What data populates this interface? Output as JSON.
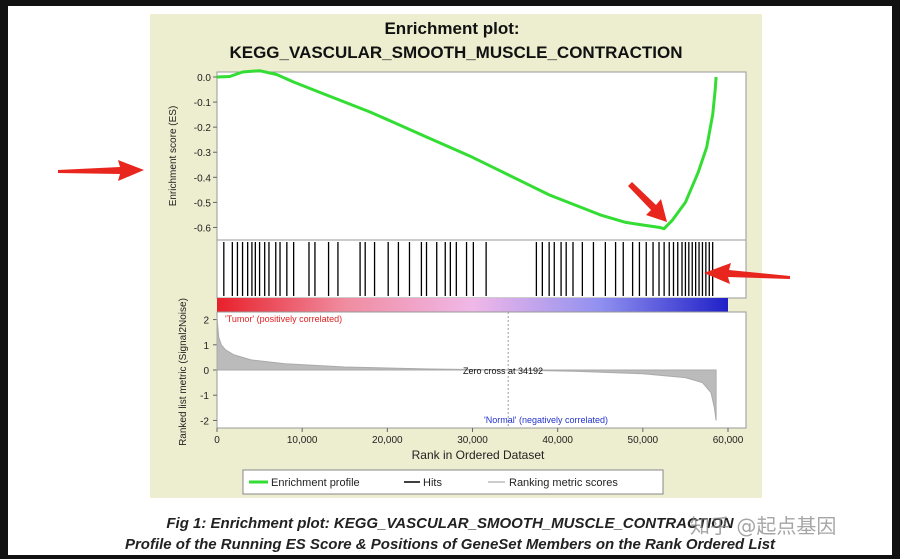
{
  "chart_data": {
    "type": "line",
    "title": "Enrichment plot:",
    "subtitle": "KEGG_VASCULAR_SMOOTH_MUSCLE_CONTRACTION",
    "es_panel": {
      "ylabel": "Enrichment score (ES)",
      "ylim": [
        -0.65,
        0.02
      ],
      "yticks": [
        "0.0",
        "-0.1",
        "-0.2",
        "-0.3",
        "-0.4",
        "-0.5",
        "-0.6"
      ],
      "series": [
        {
          "name": "Enrichment profile",
          "color": "#33dd33",
          "x": [
            0,
            1500,
            3000,
            5000,
            7000,
            9000,
            12000,
            15000,
            18000,
            21000,
            24000,
            27000,
            30000,
            33000,
            36000,
            39000,
            42000,
            45000,
            48000,
            50000,
            52000,
            52500,
            53500,
            55000,
            56500,
            57500,
            58200,
            58500,
            58600
          ],
          "y": [
            0.0,
            0.002,
            0.02,
            0.025,
            0.01,
            -0.02,
            -0.06,
            -0.1,
            -0.14,
            -0.185,
            -0.23,
            -0.275,
            -0.32,
            -0.37,
            -0.42,
            -0.47,
            -0.51,
            -0.55,
            -0.58,
            -0.59,
            -0.6,
            -0.605,
            -0.57,
            -0.5,
            -0.38,
            -0.28,
            -0.15,
            -0.05,
            0.0
          ]
        }
      ]
    },
    "hits_panel": {
      "hit_positions": [
        800,
        1800,
        2400,
        3000,
        3600,
        4100,
        4500,
        5000,
        5600,
        6100,
        6900,
        7400,
        8200,
        9000,
        10800,
        11500,
        13100,
        14200,
        16800,
        17400,
        18500,
        20100,
        21300,
        22600,
        24000,
        24600,
        25800,
        26800,
        27400,
        28100,
        29300,
        30100,
        31600,
        37500,
        38200,
        39000,
        39600,
        40400,
        41000,
        41800,
        42900,
        44200,
        45600,
        46800,
        47700,
        48800,
        49600,
        50400,
        51200,
        51900,
        52500,
        53100,
        53600,
        54100,
        54600,
        55000,
        55400,
        55800,
        56200,
        56600,
        57000,
        57400,
        57800,
        58200
      ],
      "gradient_colors": [
        "#e8202a",
        "#f08ca0",
        "#f0b8e8",
        "#9090f0",
        "#2020c8"
      ]
    },
    "metric_panel": {
      "ylabel": "Ranked list metric (Signal2Noise)",
      "ylim": [
        -2.3,
        2.3
      ],
      "yticks": [
        "2",
        "1",
        "0",
        "-1",
        "-2"
      ],
      "positive_label": "'Tumor' (positively correlated)",
      "negative_label": "'Normal' (negatively correlated)",
      "zero_cross_label": "Zero cross at 34192",
      "zero_cross": 34192,
      "series": [
        {
          "name": "Ranking metric scores",
          "x": [
            0,
            200,
            500,
            1000,
            2000,
            4000,
            8000,
            15000,
            25000,
            34192,
            42000,
            50000,
            55000,
            57000,
            58000,
            58400,
            58600
          ],
          "y": [
            2.1,
            1.3,
            1.0,
            0.8,
            0.6,
            0.4,
            0.25,
            0.12,
            0.04,
            0.0,
            -0.05,
            -0.15,
            -0.3,
            -0.5,
            -0.9,
            -1.5,
            -2.0
          ]
        }
      ]
    },
    "xlabel": "Rank in Ordered Dataset",
    "xlim": [
      0,
      60000
    ],
    "xticks": [
      "0",
      "10,000",
      "20,000",
      "30,000",
      "40,000",
      "50,000",
      "60,000"
    ],
    "legend": {
      "placement": "bottom",
      "items": [
        {
          "label": "Enrichment profile",
          "color": "#33dd33"
        },
        {
          "label": "Hits",
          "color": "#000000"
        },
        {
          "label": "Ranking metric scores",
          "color": "#bbbbbb"
        }
      ]
    }
  },
  "caption": {
    "line1": "Fig 1: Enrichment plot: KEGG_VASCULAR_SMOOTH_MUSCLE_CONTRACTION",
    "line2": "Profile of the Running ES Score & Positions of GeneSet Members on the Rank Ordered List"
  },
  "watermark": "知乎 @起点基因",
  "arrow_color": "#e8261e"
}
